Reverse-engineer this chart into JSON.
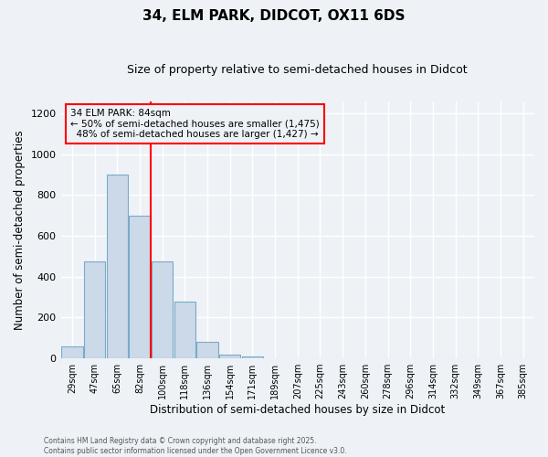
{
  "title": "34, ELM PARK, DIDCOT, OX11 6DS",
  "subtitle": "Size of property relative to semi-detached houses in Didcot",
  "xlabel": "Distribution of semi-detached houses by size in Didcot",
  "ylabel": "Number of semi-detached properties",
  "bar_color": "#ccd9e8",
  "bar_edge_color": "#7aaac8",
  "categories": [
    "29sqm",
    "47sqm",
    "65sqm",
    "82sqm",
    "100sqm",
    "118sqm",
    "136sqm",
    "154sqm",
    "171sqm",
    "189sqm",
    "207sqm",
    "225sqm",
    "243sqm",
    "260sqm",
    "278sqm",
    "296sqm",
    "314sqm",
    "332sqm",
    "349sqm",
    "367sqm",
    "385sqm"
  ],
  "values": [
    60,
    475,
    900,
    700,
    475,
    280,
    80,
    18,
    8,
    0,
    0,
    0,
    0,
    0,
    0,
    0,
    0,
    0,
    0,
    0,
    0
  ],
  "property_label": "34 ELM PARK: 84sqm",
  "smaller_pct": 50,
  "smaller_count": 1475,
  "larger_pct": 48,
  "larger_count": 1427,
  "red_line_x": 3.5,
  "ylim": [
    0,
    1260
  ],
  "yticks": [
    0,
    200,
    400,
    600,
    800,
    1000,
    1200
  ],
  "footer_line1": "Contains HM Land Registry data © Crown copyright and database right 2025.",
  "footer_line2": "Contains public sector information licensed under the Open Government Licence v3.0.",
  "background_color": "#eef2f7"
}
